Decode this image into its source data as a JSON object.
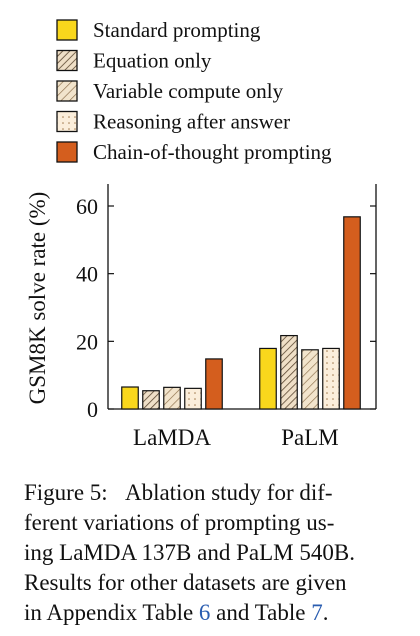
{
  "chart_data": {
    "type": "bar",
    "categories": [
      "LaMDA",
      "PaLM"
    ],
    "ylabel": "GSM8K solve rate (%)",
    "ylim": [
      0,
      60
    ],
    "yticks": [
      0,
      20,
      40,
      60
    ],
    "legend_position": "top",
    "series": [
      {
        "name": "Standard prompting",
        "values": [
          6.5,
          17.9
        ],
        "color": "#f9d71c",
        "pattern": "solid"
      },
      {
        "name": "Equation only",
        "values": [
          5.4,
          21.7
        ],
        "color": "#e9d3b5",
        "pattern": "crosshatch"
      },
      {
        "name": "Variable compute only",
        "values": [
          6.4,
          17.5
        ],
        "color": "#f2e4cc",
        "pattern": "diagonal"
      },
      {
        "name": "Reasoning after answer",
        "values": [
          6.1,
          17.9
        ],
        "color": "#fbeedb",
        "pattern": "dots"
      },
      {
        "name": "Chain-of-thought prompting",
        "values": [
          14.8,
          56.8
        ],
        "color": "#d45e1e",
        "pattern": "solid"
      }
    ]
  },
  "caption": {
    "label": "Figure 5:",
    "line1_rest": "Ablation study for dif-",
    "line2": "ferent variations of prompting us-",
    "line3": "ing LaMDA 137B and PaLM 540B.",
    "line4": "Results for other datasets are given",
    "line5_pre": "in Appendix Table ",
    "ref1": "6",
    "line5_mid": " and Table ",
    "ref2": "7",
    "line5_post": "."
  }
}
